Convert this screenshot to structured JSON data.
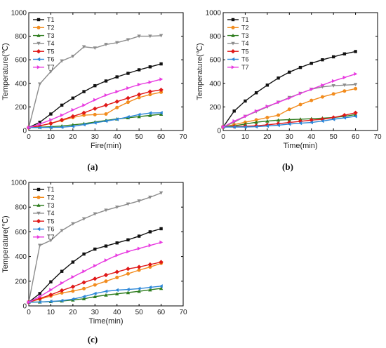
{
  "series_colors": {
    "T1": "#111111",
    "T2": "#f28c1e",
    "T3": "#2e7d1e",
    "T4": "#8c8c8c",
    "T5": "#e01818",
    "T6": "#2a86d8",
    "T7": "#e83be0"
  },
  "series_markers": {
    "T1": "square",
    "T2": "circle",
    "T3": "triangle-up",
    "T4": "triangle-down",
    "T5": "diamond",
    "T6": "triangle-left",
    "T7": "triangle-right"
  },
  "chart_data": [
    {
      "type": "line",
      "panel_label": "(a)",
      "xlabel": "Fire(min)",
      "ylabel": "Temperature(℃)",
      "xlim": [
        0,
        70
      ],
      "ylim": [
        0,
        1000
      ],
      "xticks": [
        0,
        10,
        20,
        30,
        40,
        50,
        60,
        70
      ],
      "yticks": [
        0,
        200,
        400,
        600,
        800,
        1000
      ],
      "legend": "top-left",
      "x": [
        0,
        5,
        10,
        15,
        20,
        25,
        30,
        35,
        40,
        45,
        50,
        55,
        60
      ],
      "series": [
        {
          "name": "T1",
          "values": [
            25,
            70,
            140,
            215,
            275,
            330,
            380,
            420,
            455,
            485,
            515,
            540,
            565
          ]
        },
        {
          "name": "T2",
          "values": [
            25,
            40,
            60,
            85,
            110,
            130,
            135,
            140,
            195,
            240,
            280,
            305,
            325
          ]
        },
        {
          "name": "T3",
          "values": [
            25,
            28,
            32,
            38,
            48,
            58,
            72,
            85,
            98,
            108,
            118,
            128,
            138
          ]
        },
        {
          "name": "T4",
          "values": [
            25,
            395,
            500,
            590,
            630,
            710,
            700,
            730,
            745,
            770,
            800,
            800,
            805
          ]
        },
        {
          "name": "T5",
          "values": [
            25,
            40,
            60,
            90,
            120,
            150,
            185,
            215,
            245,
            275,
            305,
            330,
            345
          ]
        },
        {
          "name": "T6",
          "values": [
            25,
            25,
            26,
            28,
            35,
            50,
            65,
            80,
            95,
            115,
            135,
            148,
            150
          ]
        },
        {
          "name": "T7",
          "values": [
            25,
            55,
            90,
            130,
            175,
            215,
            260,
            300,
            330,
            360,
            390,
            410,
            435
          ]
        }
      ]
    },
    {
      "type": "line",
      "panel_label": "(b)",
      "xlabel": "Time(min)",
      "ylabel": "Temperature(℃)",
      "xlim": [
        0,
        70
      ],
      "ylim": [
        0,
        1000
      ],
      "xticks": [
        0,
        10,
        20,
        30,
        40,
        50,
        60,
        70
      ],
      "yticks": [
        0,
        200,
        400,
        600,
        800,
        1000
      ],
      "legend": "top-left",
      "x": [
        0,
        5,
        10,
        15,
        20,
        25,
        30,
        35,
        40,
        45,
        50,
        55,
        60
      ],
      "series": [
        {
          "name": "T1",
          "values": [
            30,
            165,
            250,
            320,
            385,
            445,
            495,
            535,
            570,
            600,
            625,
            650,
            670
          ]
        },
        {
          "name": "T2",
          "values": [
            30,
            50,
            70,
            90,
            110,
            130,
            180,
            220,
            255,
            285,
            310,
            335,
            355
          ]
        },
        {
          "name": "T3",
          "values": [
            30,
            40,
            55,
            70,
            80,
            88,
            92,
            96,
            100,
            105,
            110,
            120,
            135
          ]
        },
        {
          "name": "T4",
          "values": [
            30,
            70,
            120,
            160,
            200,
            240,
            280,
            315,
            350,
            370,
            380,
            385,
            390
          ]
        },
        {
          "name": "T5",
          "values": [
            30,
            33,
            36,
            40,
            48,
            58,
            68,
            78,
            88,
            95,
            110,
            130,
            150
          ]
        },
        {
          "name": "T6",
          "values": [
            30,
            30,
            30,
            32,
            38,
            45,
            55,
            62,
            68,
            80,
            95,
            108,
            120
          ]
        },
        {
          "name": "T7",
          "values": [
            30,
            80,
            120,
            165,
            205,
            240,
            275,
            315,
            350,
            385,
            420,
            450,
            480
          ]
        }
      ]
    },
    {
      "type": "line",
      "panel_label": "(c)",
      "xlabel": "Time(min)",
      "ylabel": "Temperature(℃)",
      "xlim": [
        0,
        70
      ],
      "ylim": [
        0,
        1000
      ],
      "xticks": [
        0,
        10,
        20,
        30,
        40,
        50,
        60,
        70
      ],
      "yticks": [
        0,
        200,
        400,
        600,
        800,
        1000
      ],
      "legend": "top-left",
      "x": [
        0,
        5,
        10,
        15,
        20,
        25,
        30,
        35,
        40,
        45,
        50,
        55,
        60
      ],
      "series": [
        {
          "name": "T1",
          "values": [
            30,
            100,
            195,
            280,
            355,
            420,
            460,
            485,
            510,
            535,
            565,
            600,
            625
          ]
        },
        {
          "name": "T2",
          "values": [
            30,
            55,
            80,
            105,
            120,
            140,
            170,
            200,
            230,
            260,
            290,
            315,
            345
          ]
        },
        {
          "name": "T3",
          "values": [
            30,
            32,
            35,
            40,
            48,
            58,
            75,
            88,
            98,
            108,
            118,
            130,
            142
          ]
        },
        {
          "name": "T4",
          "values": [
            30,
            490,
            530,
            610,
            665,
            705,
            745,
            775,
            800,
            825,
            850,
            880,
            915
          ]
        },
        {
          "name": "T5",
          "values": [
            30,
            60,
            90,
            125,
            155,
            190,
            220,
            250,
            275,
            300,
            315,
            335,
            355
          ]
        },
        {
          "name": "T6",
          "values": [
            30,
            32,
            36,
            42,
            55,
            75,
            100,
            118,
            128,
            133,
            140,
            150,
            160
          ]
        },
        {
          "name": "T7",
          "values": [
            30,
            75,
            130,
            185,
            235,
            280,
            325,
            370,
            410,
            440,
            465,
            490,
            515
          ]
        }
      ]
    }
  ]
}
